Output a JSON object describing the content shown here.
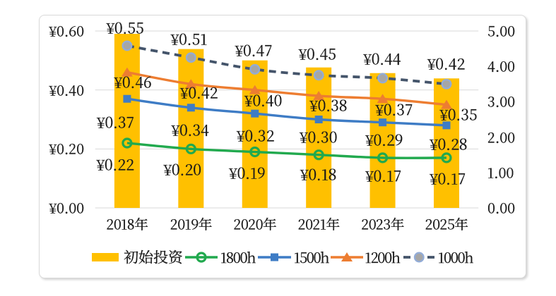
{
  "chart_data": {
    "type": "combo-bar-line",
    "categories": [
      "2018年",
      "2019年",
      "2020年",
      "2021年",
      "2023年",
      "2025年"
    ],
    "bar_series": {
      "name": "初始投资",
      "axis": "right",
      "color": "#FFC000",
      "values": [
        4.92,
        4.49,
        4.17,
        3.97,
        3.81,
        3.66
      ]
    },
    "line_series": [
      {
        "name": "1800h",
        "color": "#21A94E",
        "marker": "open-circle",
        "dashed": false,
        "values": [
          0.22,
          0.2,
          0.19,
          0.18,
          0.17,
          0.17
        ],
        "labels": [
          "¥0.22",
          "¥0.20",
          "¥0.19",
          "¥0.18",
          "¥0.17",
          "¥0.17"
        ]
      },
      {
        "name": "1500h",
        "color": "#3E7CC5",
        "marker": "square",
        "dashed": false,
        "values": [
          0.37,
          0.34,
          0.32,
          0.3,
          0.29,
          0.28
        ],
        "labels": [
          "¥0.37",
          "¥0.34",
          "¥0.32",
          "¥0.30",
          "¥0.29",
          "¥0.28"
        ]
      },
      {
        "name": "1200h",
        "color": "#ED7D31",
        "marker": "triangle",
        "dashed": false,
        "values": [
          0.46,
          0.42,
          0.4,
          0.38,
          0.37,
          0.35
        ],
        "labels": [
          "¥0.46",
          "¥0.42",
          "¥0.40",
          "¥0.38",
          "¥0.37",
          "¥0.35"
        ]
      },
      {
        "name": "1000h",
        "color": "#44546A",
        "marker": "gray-circle",
        "dashed": true,
        "marker_fill": "#A6A6A6",
        "marker_border": "#93ACD7",
        "values": [
          0.55,
          0.51,
          0.47,
          0.45,
          0.44,
          0.42
        ],
        "labels": [
          "¥0.55",
          "¥0.51",
          "¥0.47",
          "¥0.45",
          "¥0.44",
          "¥0.42"
        ]
      }
    ],
    "left_axis": {
      "min": 0,
      "max": 0.6,
      "ticks": [
        "¥0.00",
        "¥0.20",
        "¥0.40",
        "¥0.60"
      ]
    },
    "right_axis": {
      "min": 0,
      "max": 5,
      "ticks": [
        "0.00",
        "1.00",
        "2.00",
        "3.00",
        "4.00",
        "5.00"
      ]
    },
    "grid": true,
    "gridline_color": "#D9D9D9",
    "legend_position": "bottom",
    "legend": [
      "初始投资",
      "1800h",
      "1500h",
      "1200h",
      "1000h"
    ]
  }
}
